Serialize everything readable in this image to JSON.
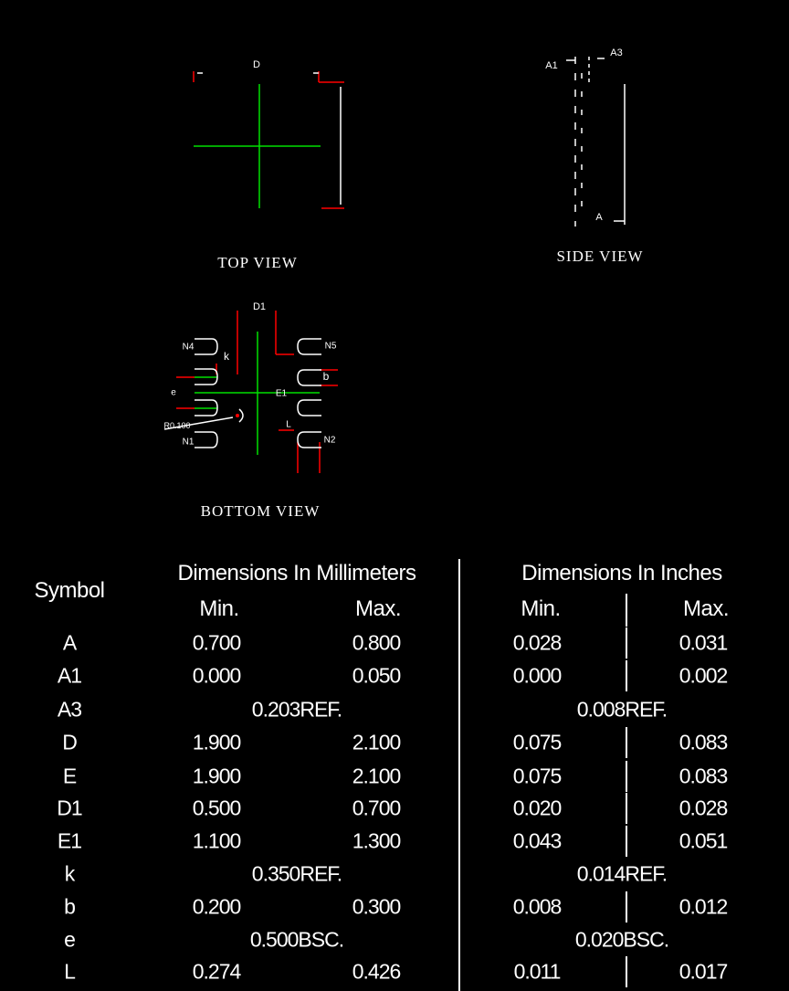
{
  "drawing": {
    "top_view": {
      "title": "TOP  VIEW",
      "dim_label": "D"
    },
    "side_view": {
      "title": "SIDE  VIEW",
      "labels": [
        "A1",
        "A3",
        "A"
      ]
    },
    "bottom_view": {
      "title": "BOTTOM   VIEW",
      "labels": {
        "d1": "D1",
        "k": "k",
        "e": "e",
        "radius": "R0.100",
        "n1": "N1",
        "n2": "N2",
        "n4": "N4",
        "n5": "N5",
        "b": "b",
        "e1": "E1",
        "l": "L"
      }
    },
    "colors": {
      "centerline": "#00e000",
      "dimension": "#ff0000",
      "outline": "#ffffff"
    }
  },
  "table": {
    "symbol_header": "Symbol",
    "mm_header": "Dimensions In Millimeters",
    "in_header": "Dimensions In Inches",
    "min": "Min.",
    "max": "Max.",
    "rows": [
      {
        "symbol": "A",
        "mm_min": "0.700",
        "mm_max": "0.800",
        "in_min": "0.028",
        "in_max": "0.031"
      },
      {
        "symbol": "A1",
        "mm_min": "0.000",
        "mm_max": "0.050",
        "in_min": "0.000",
        "in_max": "0.002"
      },
      {
        "symbol": "A3",
        "mm_span": "0.203REF.",
        "in_span": "0.008REF."
      },
      {
        "symbol": "D",
        "mm_min": "1.900",
        "mm_max": "2.100",
        "in_min": "0.075",
        "in_max": "0.083"
      },
      {
        "symbol": "E",
        "mm_min": "1.900",
        "mm_max": "2.100",
        "in_min": "0.075",
        "in_max": "0.083"
      },
      {
        "symbol": "D1",
        "mm_min": "0.500",
        "mm_max": "0.700",
        "in_min": "0.020",
        "in_max": "0.028"
      },
      {
        "symbol": "E1",
        "mm_min": "1.100",
        "mm_max": "1.300",
        "in_min": "0.043",
        "in_max": "0.051"
      },
      {
        "symbol": "k",
        "mm_span": "0.350REF.",
        "in_span": "0.014REF."
      },
      {
        "symbol": "b",
        "mm_min": "0.200",
        "mm_max": "0.300",
        "in_min": "0.008",
        "in_max": "0.012"
      },
      {
        "symbol": "e",
        "mm_span": "0.500BSC.",
        "in_span": "0.020BSC."
      },
      {
        "symbol": "L",
        "mm_min": "0.274",
        "mm_max": "0.426",
        "in_min": "0.011",
        "in_max": "0.017"
      }
    ]
  }
}
